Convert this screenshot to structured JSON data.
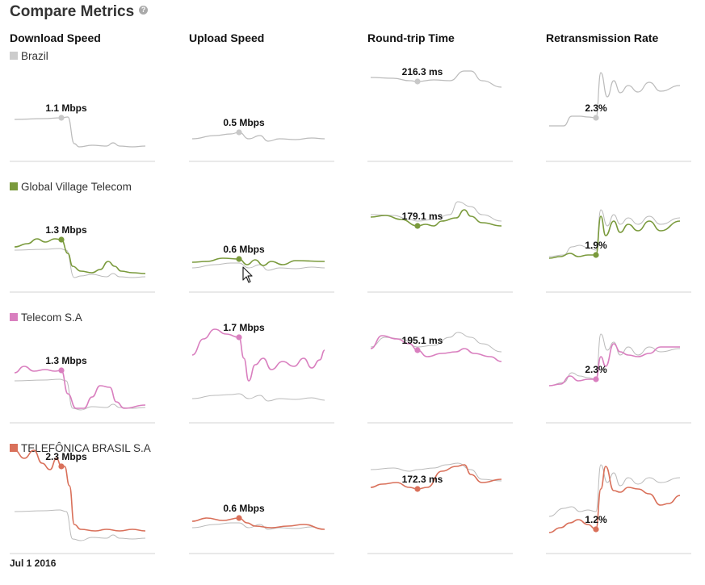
{
  "title": "Compare Metrics",
  "help_icon": "help-icon",
  "x_label": "Jul 1 2016",
  "chart_data": {
    "type": "line",
    "metrics": [
      "Download Speed",
      "Upload Speed",
      "Round-trip Time",
      "Retransmission Rate"
    ],
    "rows": [
      {
        "name": "Brazil",
        "color": "#cccccc",
        "labels": [
          "1.1 Mbps",
          "0.5 Mbps",
          "216.3 ms",
          "2.3%"
        ]
      },
      {
        "name": "Global Village Telecom",
        "color": "#7a9a3c",
        "labels": [
          "1.3 Mbps",
          "0.6 Mbps",
          "179.1 ms",
          "1.9%"
        ]
      },
      {
        "name": "Telecom S.A",
        "color": "#d97fbf",
        "labels": [
          "1.3 Mbps",
          "1.7 Mbps",
          "195.1 ms",
          "2.3%"
        ]
      },
      {
        "name": "TELEFÔNICA BRASIL S.A",
        "color": "#d9705a",
        "labels": [
          "2.3 Mbps",
          "0.6 Mbps",
          "172.3 ms",
          "1.2%"
        ]
      }
    ]
  }
}
